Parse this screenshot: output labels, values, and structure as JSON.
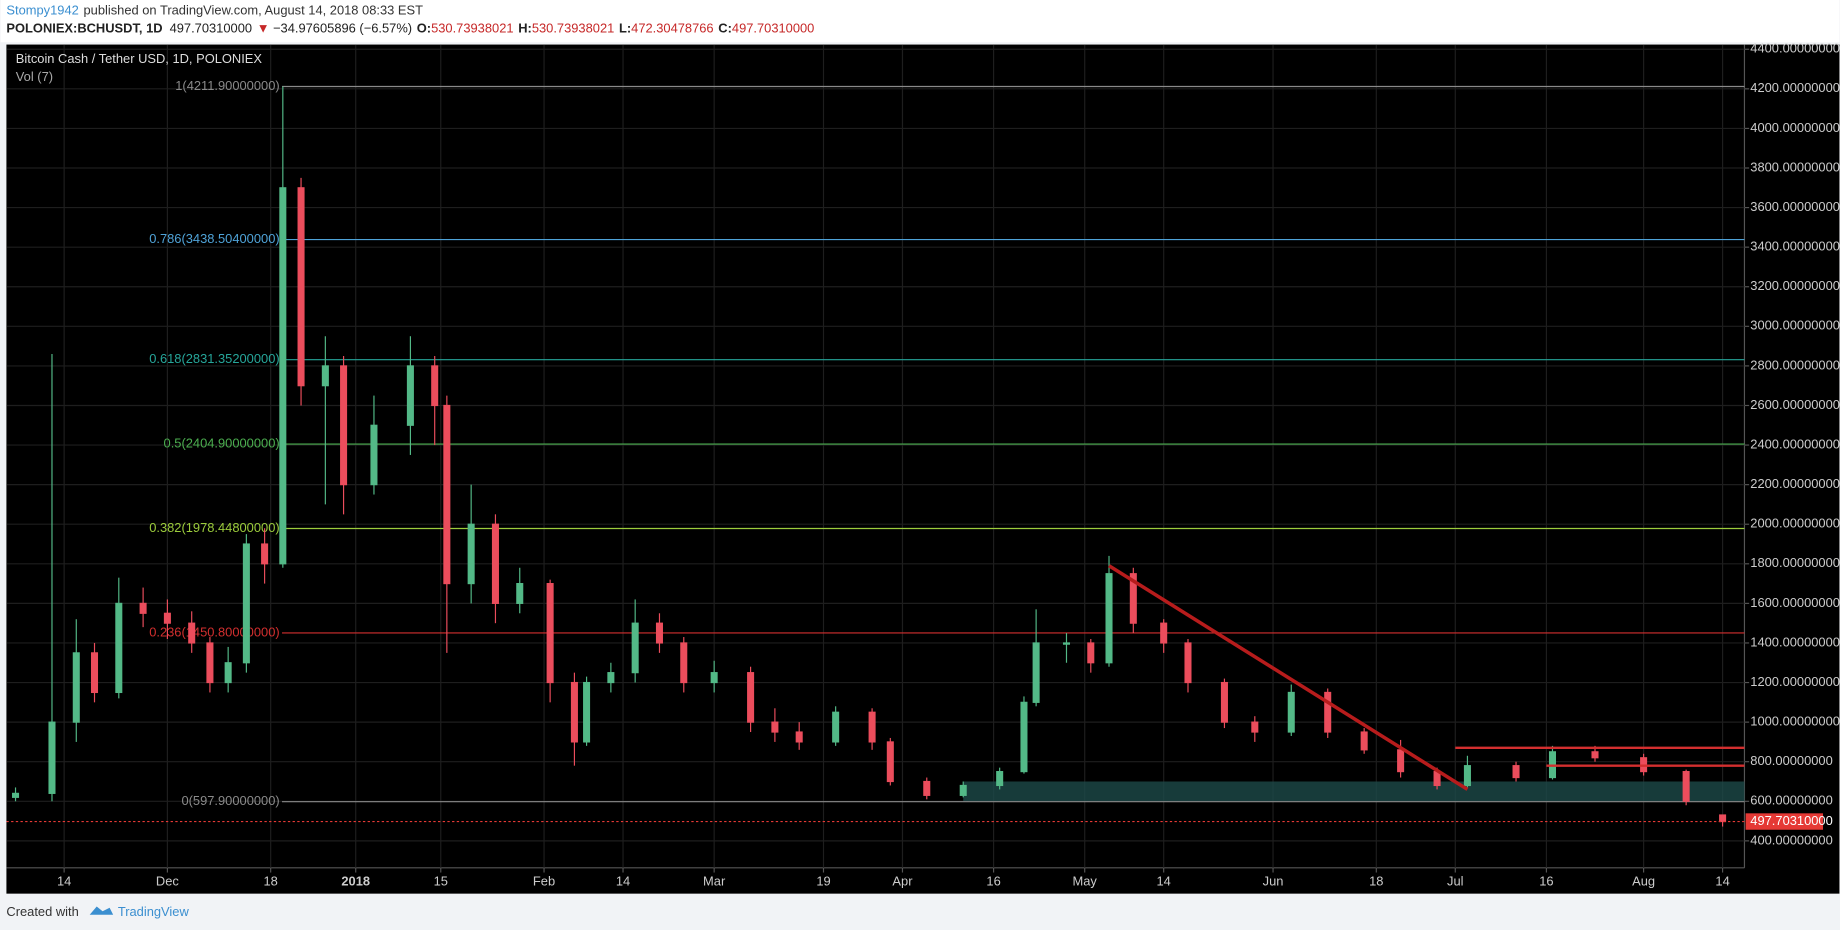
{
  "header": {
    "author": "Stompy1942",
    "published": "published on TradingView.com, August 14, 2018 08:33 EST",
    "symbol": "POLONIEX:BCHUSDT, 1D",
    "last": "497.70310000",
    "arrow": "▼",
    "change": "−34.97605896 (−6.57%)",
    "o_label": "O:",
    "o": "530.73938021",
    "h_label": "H:",
    "h": "530.73938021",
    "l_label": "L:",
    "l": "472.30478766",
    "c_label": "C:",
    "c": "497.70310000"
  },
  "footer": {
    "created": "Created with",
    "brand": "TradingView"
  },
  "chart_data": {
    "type": "candlestick",
    "title": "Bitcoin Cash / Tether USD, 1D, POLONIEX",
    "volume_label": "Vol (7)",
    "up_color": "#53b987",
    "down_color": "#eb4d5c",
    "grid": true,
    "xlim": [
      -9.5,
      276.6
    ],
    "ylim": [
      263.7,
      4423.7
    ],
    "xticks": [
      {
        "value": 0,
        "label": "14"
      },
      {
        "value": 17,
        "label": "Dec"
      },
      {
        "value": 34,
        "label": "18"
      },
      {
        "value": 48,
        "label": "2018"
      },
      {
        "value": 62,
        "label": "15"
      },
      {
        "value": 79,
        "label": "Feb"
      },
      {
        "value": 92,
        "label": "14"
      },
      {
        "value": 107,
        "label": "Mar"
      },
      {
        "value": 125,
        "label": "19"
      },
      {
        "value": 138,
        "label": "Apr"
      },
      {
        "value": 153,
        "label": "16"
      },
      {
        "value": 168,
        "label": "May"
      },
      {
        "value": 181,
        "label": "14"
      },
      {
        "value": 199,
        "label": "Jun"
      },
      {
        "value": 216,
        "label": "18"
      },
      {
        "value": 229,
        "label": "Jul"
      },
      {
        "value": 244,
        "label": "16"
      },
      {
        "value": 260,
        "label": "Aug"
      },
      {
        "value": 273,
        "label": "14"
      }
    ],
    "yticks": [
      {
        "value": 400,
        "label": "400.00000000"
      },
      {
        "value": 600,
        "label": "600.00000000"
      },
      {
        "value": 800,
        "label": "800.00000000"
      },
      {
        "value": 1000,
        "label": "1000.00000000"
      },
      {
        "value": 1200,
        "label": "1200.00000000"
      },
      {
        "value": 1400,
        "label": "1400.00000000"
      },
      {
        "value": 1600,
        "label": "1600.00000000"
      },
      {
        "value": 1800,
        "label": "1800.00000000"
      },
      {
        "value": 2000,
        "label": "2000.00000000"
      },
      {
        "value": 2200,
        "label": "2200.00000000"
      },
      {
        "value": 2400,
        "label": "2400.00000000"
      },
      {
        "value": 2600,
        "label": "2600.00000000"
      },
      {
        "value": 2800,
        "label": "2800.00000000"
      },
      {
        "value": 3000,
        "label": "3000.00000000"
      },
      {
        "value": 3200,
        "label": "3200.00000000"
      },
      {
        "value": 3400,
        "label": "3400.00000000"
      },
      {
        "value": 3600,
        "label": "3600.00000000"
      },
      {
        "value": 3800,
        "label": "3800.00000000"
      },
      {
        "value": 4000,
        "label": "4000.00000000"
      },
      {
        "value": 4200,
        "label": "4200.00000000"
      },
      {
        "value": 4400,
        "label": "4400.00000000"
      }
    ],
    "x": [
      -8,
      -2,
      2,
      5,
      9,
      13,
      17,
      21,
      24,
      27,
      30,
      33,
      36,
      39,
      43,
      46,
      51,
      57,
      61,
      63,
      67,
      71,
      75,
      80,
      84,
      86,
      90,
      94,
      98,
      102,
      107,
      113,
      117,
      121,
      127,
      133,
      136,
      142,
      148,
      154,
      158,
      160,
      165,
      169,
      172,
      176,
      181,
      185,
      191,
      196,
      202,
      208,
      214,
      220,
      226,
      231,
      239,
      245,
      252,
      260,
      267,
      273
    ],
    "open": [
      620,
      640,
      1000,
      1350,
      1150,
      1600,
      1550,
      1500,
      1400,
      1200,
      1300,
      1900,
      1800,
      3700,
      2700,
      2800,
      2200,
      2500,
      2800,
      2600,
      1700,
      2000,
      1600,
      1700,
      1200,
      900,
      1200,
      1250,
      1500,
      1400,
      1200,
      1250,
      1000,
      950,
      900,
      1050,
      900,
      700,
      630,
      680,
      750,
      1100,
      1400,
      1400,
      1300,
      1750,
      1500,
      1400,
      1200,
      1000,
      950,
      1150,
      950,
      860,
      750,
      680,
      780,
      720,
      850,
      820,
      750,
      530.7394
    ],
    "high": [
      670,
      2860,
      1520,
      1400,
      1730,
      1680,
      1620,
      1560,
      1430,
      1380,
      1950,
      1980,
      4211.9,
      3750,
      2950,
      2850,
      2650,
      2950,
      2850,
      2650,
      2200,
      2050,
      1780,
      1720,
      1250,
      1230,
      1300,
      1620,
      1550,
      1430,
      1310,
      1280,
      1070,
      1000,
      1080,
      1070,
      920,
      720,
      700,
      770,
      1130,
      1570,
      1450,
      1420,
      1840,
      1780,
      1520,
      1420,
      1220,
      1030,
      1190,
      1170,
      970,
      910,
      770,
      830,
      800,
      880,
      880,
      840,
      760,
      530.7394
    ],
    "low": [
      600,
      600,
      900,
      1100,
      1120,
      1480,
      1420,
      1350,
      1150,
      1150,
      1250,
      1700,
      1780,
      2600,
      2100,
      2050,
      2150,
      2350,
      2400,
      1350,
      1600,
      1500,
      1550,
      1100,
      780,
      880,
      1150,
      1200,
      1350,
      1150,
      1150,
      950,
      900,
      860,
      880,
      860,
      680,
      610,
      620,
      660,
      740,
      1080,
      1300,
      1250,
      1280,
      1450,
      1350,
      1150,
      970,
      900,
      930,
      920,
      840,
      720,
      660,
      670,
      700,
      710,
      800,
      730,
      580,
      472.3048
    ],
    "close": [
      640,
      1000,
      1350,
      1150,
      1600,
      1550,
      1500,
      1400,
      1200,
      1300,
      1900,
      1800,
      3700,
      2700,
      2800,
      2200,
      2500,
      2800,
      2600,
      1700,
      2000,
      1600,
      1700,
      1200,
      900,
      1200,
      1250,
      1500,
      1400,
      1200,
      1250,
      1000,
      950,
      900,
      1050,
      900,
      700,
      630,
      680,
      750,
      1100,
      1400,
      1400,
      1300,
      1750,
      1500,
      1400,
      1200,
      1000,
      950,
      1150,
      950,
      860,
      750,
      680,
      780,
      720,
      850,
      820,
      750,
      600,
      497.7031
    ],
    "fib_levels": [
      {
        "label": "1(4211.90000000)",
        "value": 4211.9,
        "color": "#8a8a8a"
      },
      {
        "label": "0.786(3438.50400000)",
        "value": 3438.504,
        "color": "#4fa3d8"
      },
      {
        "label": "0.618(2831.35200000)",
        "value": 2831.352,
        "color": "#26a69a"
      },
      {
        "label": "0.5(2404.90000000)",
        "value": 2404.9,
        "color": "#4caf50"
      },
      {
        "label": "0.382(1978.44800000)",
        "value": 1978.448,
        "color": "#9ccc3c"
      },
      {
        "label": "0.236(1450.80000000)",
        "value": 1450.8,
        "color": "#d32f2f"
      },
      {
        "label": "0(597.90000000)",
        "value": 597.9,
        "color": "#8a8a8a"
      }
    ],
    "trendline": {
      "x": [
        172,
        231
      ],
      "y": [
        1790,
        660
      ],
      "color": "#b71c1c"
    },
    "hlines": [
      {
        "x": [
          229,
          276.6
        ],
        "y": 870,
        "color": "#d32f2f"
      },
      {
        "x": [
          244,
          276.6
        ],
        "y": 780,
        "color": "#d32f2f"
      }
    ],
    "zone": {
      "x": [
        148,
        276.6
      ],
      "y": [
        600,
        700
      ],
      "color": "#1d4a48"
    },
    "last_price": {
      "value": 497.7031,
      "label": "497.70310000",
      "color": "#e53935"
    }
  }
}
